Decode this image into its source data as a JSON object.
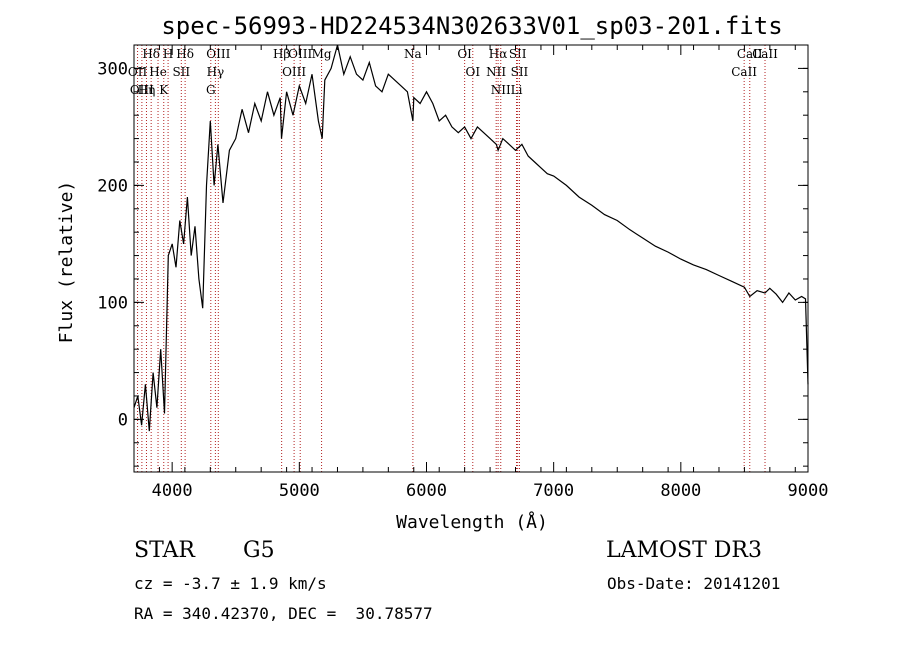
{
  "chart_data": {
    "type": "line",
    "title": "spec-56993-HD224534N302633V01_sp03-201.fits",
    "xlabel": "Wavelength (Å)",
    "ylabel": "Flux (relative)",
    "xlim": [
      3700,
      9000
    ],
    "ylim": [
      -45,
      320
    ],
    "x_ticks": [
      4000,
      5000,
      6000,
      7000,
      8000,
      9000
    ],
    "x_tick_labels": [
      "4000",
      "5000",
      "6000",
      "7000",
      "8000",
      "9000"
    ],
    "y_ticks": [
      0,
      100,
      200,
      300
    ],
    "y_tick_labels": [
      "0",
      "100",
      "200",
      "300"
    ],
    "grid": false,
    "legend": "none",
    "line_color": "#000000",
    "marker_line_color": "#b22222",
    "series": [
      {
        "name": "Flux",
        "x": [
          3700,
          3730,
          3760,
          3790,
          3820,
          3850,
          3880,
          3910,
          3940,
          3970,
          4000,
          4030,
          4060,
          4090,
          4120,
          4150,
          4180,
          4210,
          4240,
          4270,
          4300,
          4330,
          4360,
          4400,
          4450,
          4500,
          4550,
          4600,
          4650,
          4700,
          4750,
          4800,
          4850,
          4860,
          4900,
          4950,
          5000,
          5050,
          5100,
          5150,
          5180,
          5200,
          5250,
          5300,
          5350,
          5400,
          5450,
          5500,
          5550,
          5600,
          5650,
          5700,
          5750,
          5800,
          5850,
          5893,
          5900,
          5950,
          6000,
          6050,
          6100,
          6150,
          6200,
          6250,
          6300,
          6350,
          6400,
          6450,
          6500,
          6550,
          6563,
          6600,
          6650,
          6700,
          6750,
          6800,
          6850,
          6900,
          6950,
          7000,
          7100,
          7200,
          7300,
          7400,
          7500,
          7600,
          7700,
          7800,
          7900,
          8000,
          8100,
          8200,
          8300,
          8400,
          8500,
          8542,
          8600,
          8662,
          8700,
          8750,
          8800,
          8850,
          8900,
          8950,
          8980,
          9000
        ],
        "y": [
          10,
          20,
          -5,
          30,
          -10,
          40,
          10,
          60,
          5,
          140,
          150,
          130,
          170,
          150,
          190,
          140,
          165,
          120,
          95,
          200,
          255,
          200,
          235,
          185,
          230,
          240,
          265,
          245,
          270,
          255,
          280,
          260,
          275,
          240,
          280,
          260,
          285,
          270,
          295,
          255,
          240,
          290,
          300,
          320,
          295,
          310,
          295,
          290,
          305,
          285,
          280,
          295,
          290,
          285,
          280,
          255,
          275,
          270,
          280,
          270,
          255,
          260,
          250,
          245,
          250,
          240,
          250,
          245,
          240,
          235,
          230,
          240,
          235,
          230,
          235,
          225,
          220,
          215,
          210,
          208,
          200,
          190,
          183,
          175,
          170,
          162,
          155,
          148,
          143,
          137,
          132,
          128,
          123,
          118,
          113,
          105,
          110,
          108,
          112,
          107,
          100,
          108,
          102,
          105,
          103,
          30
        ]
      }
    ],
    "lines": [
      {
        "name": "Hδ",
        "x": 3835
      },
      {
        "name": "OII",
        "x": 3728
      },
      {
        "name": "OIII",
        "x": 3762
      },
      {
        "name": "He",
        "x": 3889
      },
      {
        "name": "Hη",
        "x": 3798
      },
      {
        "name": "K",
        "x": 3934
      },
      {
        "name": "H",
        "x": 3968
      },
      {
        "name": "SII",
        "x": 4072
      },
      {
        "name": "Hδ",
        "x": 4102
      },
      {
        "name": "OIII",
        "x": 4363
      },
      {
        "name": "Hγ",
        "x": 4340
      },
      {
        "name": "G",
        "x": 4304
      },
      {
        "name": "OIII",
        "x": 5007
      },
      {
        "name": "OIII",
        "x": 4959
      },
      {
        "name": "Hβ",
        "x": 4861
      },
      {
        "name": "Mg",
        "x": 5175
      },
      {
        "name": "Na",
        "x": 5893
      },
      {
        "name": "OI",
        "x": 6300
      },
      {
        "name": "OI",
        "x": 6364
      },
      {
        "name": "Hα",
        "x": 6563
      },
      {
        "name": "NII",
        "x": 6548
      },
      {
        "name": "NII",
        "x": 6584
      },
      {
        "name": "SII",
        "x": 6717
      },
      {
        "name": "SII",
        "x": 6731
      },
      {
        "name": "Li",
        "x": 6708
      },
      {
        "name": "CaII",
        "x": 8542
      },
      {
        "name": "CaII",
        "x": 8498
      },
      {
        "name": "CaII",
        "x": 8662
      }
    ]
  },
  "footer": {
    "star_label": "STAR",
    "spectral_type": "G5",
    "survey": "LAMOST DR3",
    "cz": "cz = -3.7 ± 1.9 km/s",
    "obs_date": "Obs-Date: 20141201",
    "ra_dec": "RA = 340.42370, DEC =  30.78577"
  }
}
